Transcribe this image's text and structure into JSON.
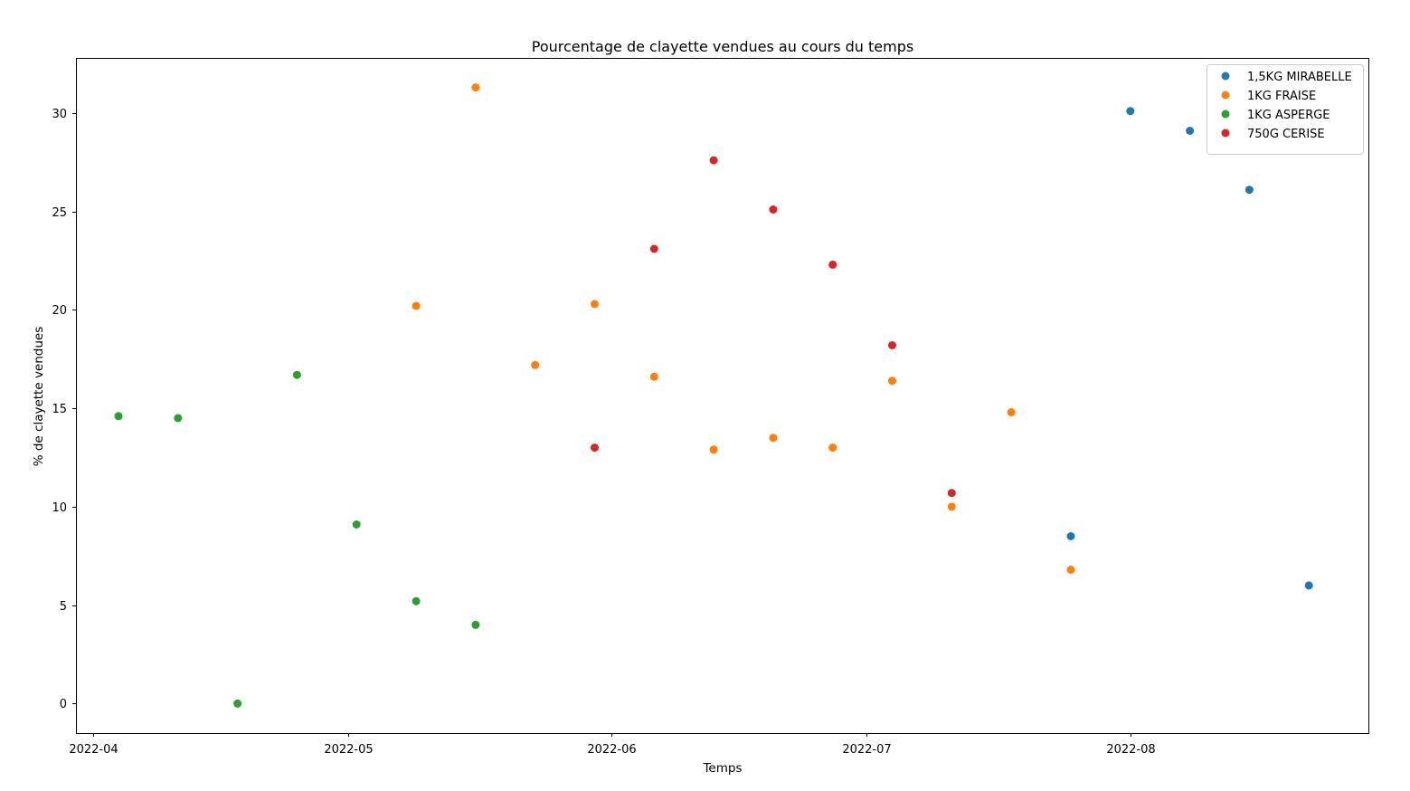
{
  "chart_data": {
    "type": "scatter",
    "title": "Pourcentage de clayette vendues au cours du temps",
    "xlabel": "Temps",
    "ylabel": "% de clayette vendues",
    "x_type": "date",
    "xlim": [
      "2022-03-30",
      "2022-08-29"
    ],
    "ylim": [
      -1.5,
      32.8
    ],
    "x_ticks": [
      "2022-04-01",
      "2022-05-01",
      "2022-06-01",
      "2022-07-01",
      "2022-08-01"
    ],
    "x_tick_labels": [
      "2022-04",
      "2022-05",
      "2022-06",
      "2022-07",
      "2022-08"
    ],
    "y_ticks": [
      0,
      5,
      10,
      15,
      20,
      25,
      30
    ],
    "y_tick_labels": [
      "0",
      "5",
      "10",
      "15",
      "20",
      "25",
      "30"
    ],
    "grid": false,
    "legend_position": "top-right",
    "series": [
      {
        "name": "1,5KG MIRABELLE",
        "color": "#1f77b4",
        "points": [
          {
            "x": "2022-07-25",
            "y": 8.5
          },
          {
            "x": "2022-08-01",
            "y": 30.1
          },
          {
            "x": "2022-08-08",
            "y": 29.1
          },
          {
            "x": "2022-08-15",
            "y": 26.1
          },
          {
            "x": "2022-08-22",
            "y": 6.0
          }
        ]
      },
      {
        "name": "1KG FRAISE",
        "color": "#ff7f0e",
        "points": [
          {
            "x": "2022-05-09",
            "y": 20.2
          },
          {
            "x": "2022-05-16",
            "y": 31.3
          },
          {
            "x": "2022-05-23",
            "y": 17.2
          },
          {
            "x": "2022-05-30",
            "y": 20.3
          },
          {
            "x": "2022-06-06",
            "y": 16.6
          },
          {
            "x": "2022-06-13",
            "y": 12.9
          },
          {
            "x": "2022-06-20",
            "y": 13.5
          },
          {
            "x": "2022-06-27",
            "y": 13.0
          },
          {
            "x": "2022-07-04",
            "y": 16.4
          },
          {
            "x": "2022-07-11",
            "y": 10.0
          },
          {
            "x": "2022-07-18",
            "y": 14.8
          },
          {
            "x": "2022-07-25",
            "y": 6.8
          }
        ]
      },
      {
        "name": "1KG ASPERGE",
        "color": "#2ca02c",
        "points": [
          {
            "x": "2022-04-04",
            "y": 14.6
          },
          {
            "x": "2022-04-11",
            "y": 14.5
          },
          {
            "x": "2022-04-18",
            "y": 0.0
          },
          {
            "x": "2022-04-25",
            "y": 16.7
          },
          {
            "x": "2022-05-02",
            "y": 9.1
          },
          {
            "x": "2022-05-09",
            "y": 5.2
          },
          {
            "x": "2022-05-16",
            "y": 4.0
          }
        ]
      },
      {
        "name": "750G CERISE",
        "color": "#d62728",
        "points": [
          {
            "x": "2022-05-30",
            "y": 13.0
          },
          {
            "x": "2022-06-06",
            "y": 23.1
          },
          {
            "x": "2022-06-13",
            "y": 27.6
          },
          {
            "x": "2022-06-20",
            "y": 25.1
          },
          {
            "x": "2022-06-27",
            "y": 22.3
          },
          {
            "x": "2022-07-04",
            "y": 18.2
          },
          {
            "x": "2022-07-11",
            "y": 10.7
          }
        ]
      }
    ]
  }
}
